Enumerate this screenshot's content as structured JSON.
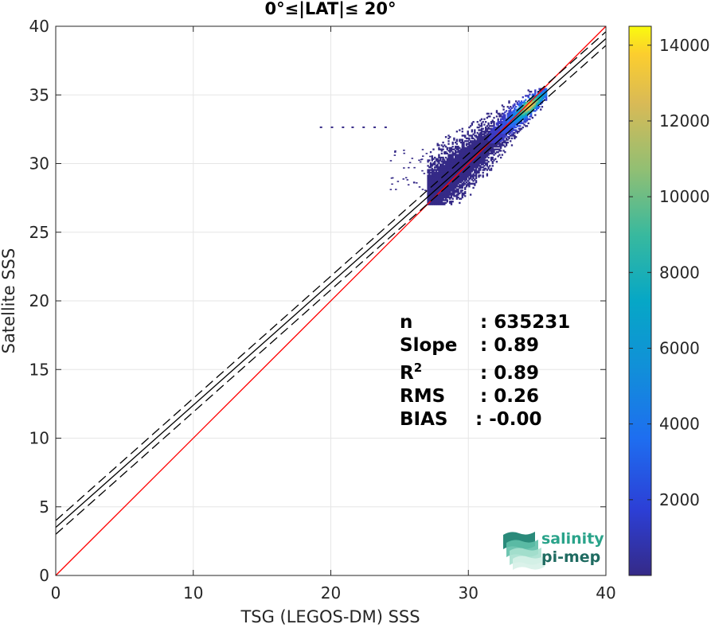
{
  "chart_data": {
    "type": "heatmap",
    "title": "0°≤|LAT|≤ 20°",
    "xlabel": "TSG (LEGOS-DM) SSS",
    "ylabel": "Satellite SSS",
    "xlim": [
      0,
      40
    ],
    "ylim": [
      0,
      40
    ],
    "xticks": [
      "0",
      "10",
      "20",
      "30",
      "40"
    ],
    "yticks": [
      "0",
      "5",
      "10",
      "15",
      "20",
      "25",
      "30",
      "35",
      "40"
    ],
    "grid": true,
    "colorbar": {
      "range": [
        0,
        14500
      ],
      "ticks": [
        "2000",
        "4000",
        "6000",
        "8000",
        "10000",
        "12000",
        "14000"
      ],
      "colormap": "parula"
    },
    "reference_lines": [
      {
        "name": "1:1",
        "slope": 1,
        "intercept": 0,
        "color": "#ff0000",
        "style": "solid"
      },
      {
        "name": "fit",
        "slope": 0.89,
        "intercept": 3.5,
        "color": "#000000",
        "style": "solid"
      },
      {
        "name": "fit+",
        "slope": 0.89,
        "intercept": 4.0,
        "color": "#000000",
        "style": "dashed"
      },
      {
        "name": "fit-",
        "slope": 0.89,
        "intercept": 3.0,
        "color": "#000000",
        "style": "dashed"
      }
    ],
    "density_core": {
      "x_range": [
        27,
        35.7
      ],
      "y_range": [
        27,
        35.5
      ],
      "peak": [
        34.3,
        34.3
      ]
    },
    "stats": [
      {
        "label": "n",
        "value": ": 635231"
      },
      {
        "label": "Slope",
        "value": ": 0.89"
      },
      {
        "label": "R",
        "sup": "2",
        "value": ": 0.89"
      },
      {
        "label": "RMS",
        "value": ": 0.26"
      },
      {
        "label": "BIAS",
        "value": ": -0.00"
      }
    ]
  },
  "logo": {
    "line1": "salinity",
    "line2": "pi-mep"
  }
}
